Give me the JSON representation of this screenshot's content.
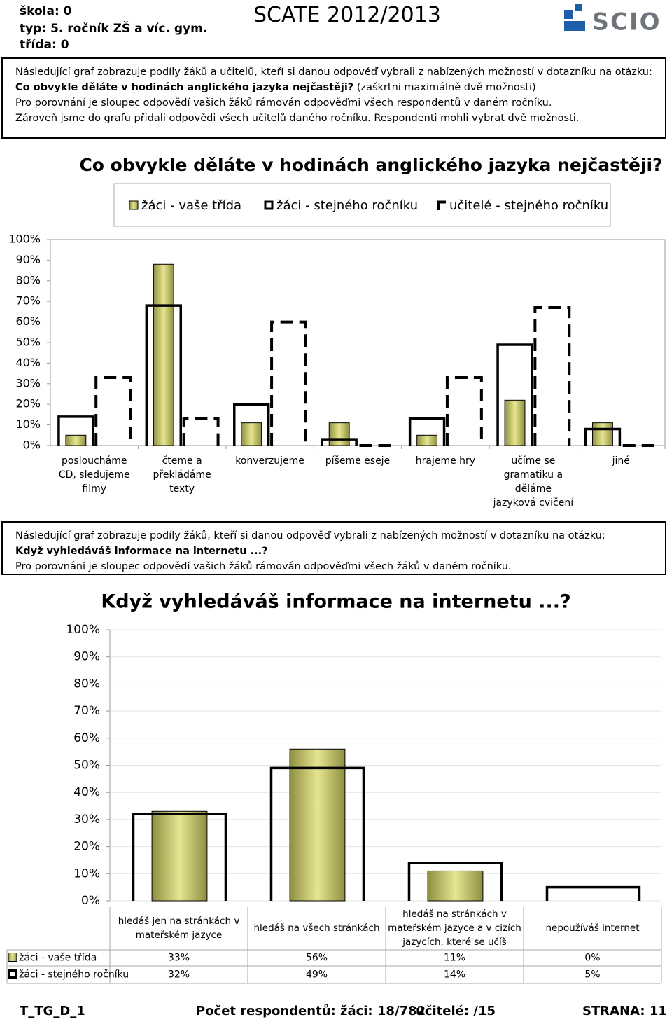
{
  "header": {
    "school": "škola: 0",
    "type": "typ: 5. ročník ZŠ a víc. gym.",
    "class": "třída: 0",
    "title": "SCATE 2012/2013",
    "logo": "SCIO"
  },
  "intro1": {
    "line1": "Následující graf zobrazuje podíly žáků a učitelů, kteří si danou odpověď vybrali z nabízených možností v dotazníku na otázku:",
    "question": "Co obvykle děláte v hodinách anglického jazyka nejčastěji?",
    "note": "(zaškrtni maximálně dvě možnosti)",
    "line3": "Pro porovnání je sloupec odpovědí vašich žáků rámován odpověďmi všech respondentů v daném ročníku.",
    "line4": "Zároveň jsme do grafu přidali odpovědi všech učitelů daného ročníku. Respondenti mohli vybrat dvě možnosti."
  },
  "intro2": {
    "line1": "Následující graf zobrazuje podíly žáků, kteří si danou odpověď vybrali z nabízených možností v dotazníku na otázku:",
    "question": "Když vyhledáváš informace na internetu ...?",
    "line3": "Pro porovnání je sloupec odpovědí vašich žáků rámován odpověďmi všech žáků v daném ročníku."
  },
  "chart_data": [
    {
      "type": "bar",
      "title": "Co obvykle děláte v hodinách anglického jazyka nejčastěji?",
      "categories": [
        "posloucháme CD, sledujeme filmy",
        "čteme a překládáme texty",
        "konverzujeme",
        "píšeme eseje",
        "hrajeme hry",
        "učíme se gramatiku a děláme jazyková cvičení",
        "jiné"
      ],
      "series": [
        {
          "name": "žáci - vaše třída",
          "color": "#e6e690",
          "style": "fill",
          "values": [
            5,
            88,
            11,
            11,
            5,
            22,
            11
          ]
        },
        {
          "name": "žáci - stejného ročníku",
          "color": "#000000",
          "style": "frame",
          "values": [
            14,
            68,
            20,
            3,
            13,
            49,
            8
          ]
        },
        {
          "name": "učitelé - stejného ročníku",
          "color": "#000000",
          "style": "dashed",
          "values": [
            33,
            13,
            60,
            0,
            33,
            67,
            0
          ]
        }
      ],
      "ylim": [
        0,
        100
      ],
      "yticks": [
        {
          "value": 0,
          "label": "0%"
        },
        {
          "value": 10,
          "label": "10%"
        },
        {
          "value": 20,
          "label": "20%"
        },
        {
          "value": 30,
          "label": "30%"
        },
        {
          "value": 40,
          "label": "40%"
        },
        {
          "value": 50,
          "label": "50%"
        },
        {
          "value": 60,
          "label": "60%"
        },
        {
          "value": 70,
          "label": "70%"
        },
        {
          "value": 80,
          "label": "80%"
        },
        {
          "value": 90,
          "label": "90%"
        },
        {
          "value": 100,
          "label": "100%"
        }
      ],
      "grid": false,
      "legend": "top"
    },
    {
      "type": "bar",
      "title": "Když vyhledáváš informace na internetu ...?",
      "categories": [
        "hledáš jen na stránkách v mateřském jazyce",
        "hledáš na všech stránkách",
        "hledáš na stránkách v mateřském jazyce a v cizích jazycích, které se učíš",
        "nepoužíváš internet"
      ],
      "series": [
        {
          "name": "žáci - vaše třída",
          "color": "#e6e690",
          "style": "fill",
          "values": [
            33,
            56,
            11,
            0
          ],
          "value_labels": [
            "33%",
            "56%",
            "11%",
            "0%"
          ]
        },
        {
          "name": "žáci - stejného ročníku",
          "color": "#000000",
          "style": "frame",
          "values": [
            32,
            49,
            14,
            5
          ],
          "value_labels": [
            "32%",
            "49%",
            "14%",
            "5%"
          ]
        }
      ],
      "ylim": [
        0,
        100
      ],
      "yticks": [
        {
          "value": 0,
          "label": "0%"
        },
        {
          "value": 10,
          "label": "10%"
        },
        {
          "value": 20,
          "label": "20%"
        },
        {
          "value": 30,
          "label": "30%"
        },
        {
          "value": 40,
          "label": "40%"
        },
        {
          "value": 50,
          "label": "50%"
        },
        {
          "value": 60,
          "label": "60%"
        },
        {
          "value": 70,
          "label": "70%"
        },
        {
          "value": 80,
          "label": "80%"
        },
        {
          "value": 90,
          "label": "90%"
        },
        {
          "value": 100,
          "label": "100%"
        }
      ],
      "grid": true,
      "legend": "table"
    }
  ],
  "footer": {
    "code": "T_TG_D_1",
    "respondents": "Počet respondentů: žáci: 18/782",
    "teachers": "učitelé: /15",
    "page": "STRANA: 11"
  }
}
